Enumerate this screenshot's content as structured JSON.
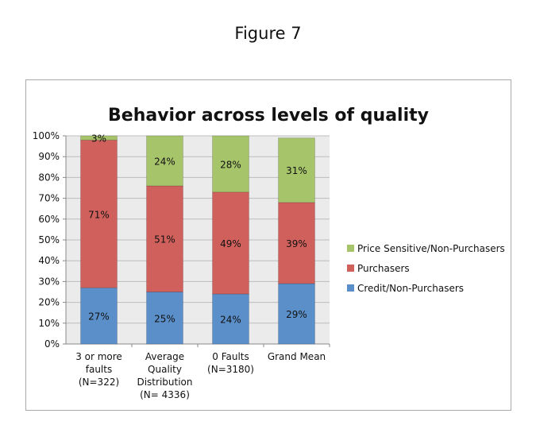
{
  "figure_label": "Figure 7",
  "chart_data": {
    "type": "bar",
    "stacked": true,
    "title": "Behavior across levels of quality",
    "categories": [
      [
        "3 or more",
        "faults",
        "(N=322)"
      ],
      [
        "Average",
        "Quality",
        "Distribution",
        "(N= 4336)"
      ],
      [
        "0 Faults",
        "(N=3180)"
      ],
      [
        "Grand Mean"
      ]
    ],
    "series": [
      {
        "name": "Credit/Non-Purchasers",
        "color": "#5b8fc9",
        "values": [
          27,
          25,
          24,
          29
        ]
      },
      {
        "name": "Purchasers",
        "color": "#d0605b",
        "values": [
          71,
          51,
          49,
          39
        ]
      },
      {
        "name": "Price Sensitive/Non-Purchasers",
        "color": "#a6c46a",
        "values": [
          3,
          24,
          28,
          31
        ]
      }
    ],
    "ylim": [
      0,
      100
    ],
    "yticks": [
      "0%",
      "10%",
      "20%",
      "30%",
      "40%",
      "50%",
      "60%",
      "70%",
      "80%",
      "90%",
      "100%"
    ],
    "grid": true,
    "legend": "right"
  }
}
